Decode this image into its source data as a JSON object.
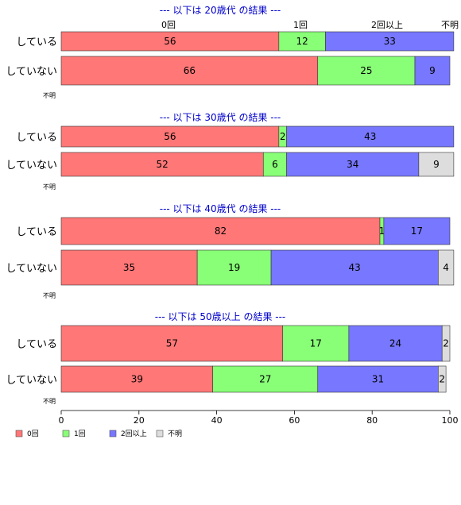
{
  "chart_data": {
    "type": "bar",
    "orientation": "horizontal",
    "stacked": true,
    "series_names": [
      "0回",
      "1回",
      "2回以上",
      "不明"
    ],
    "colors": [
      "#ff7777",
      "#88ff77",
      "#7777ff",
      "#dddddd"
    ],
    "header_labels": [
      "0回",
      "1回",
      "2回以上",
      "不明"
    ],
    "na_label": "不明",
    "xlim": [
      0,
      100
    ],
    "xticks": [
      0,
      20,
      40,
      60,
      80,
      100
    ],
    "legend_position": "bottom-left",
    "panels": [
      {
        "title": "--- 以下は 20歳代 の結果 ---",
        "rows": [
          {
            "label": "している",
            "values": [
              56,
              12,
              33,
              0
            ]
          },
          {
            "label": "していない",
            "values": [
              66,
              25,
              9,
              0
            ]
          }
        ]
      },
      {
        "title": "--- 以下は 30歳代 の結果 ---",
        "rows": [
          {
            "label": "している",
            "values": [
              56,
              2,
              43,
              0
            ]
          },
          {
            "label": "していない",
            "values": [
              52,
              6,
              34,
              9
            ]
          }
        ]
      },
      {
        "title": "--- 以下は 40歳代 の結果 ---",
        "rows": [
          {
            "label": "している",
            "values": [
              82,
              1,
              17,
              0
            ]
          },
          {
            "label": "していない",
            "values": [
              35,
              19,
              43,
              4
            ]
          }
        ]
      },
      {
        "title": "--- 以下は 50歳以上 の結果 ---",
        "rows": [
          {
            "label": "している",
            "values": [
              57,
              17,
              24,
              2
            ]
          },
          {
            "label": "していない",
            "values": [
              39,
              27,
              31,
              2
            ]
          }
        ]
      }
    ]
  }
}
